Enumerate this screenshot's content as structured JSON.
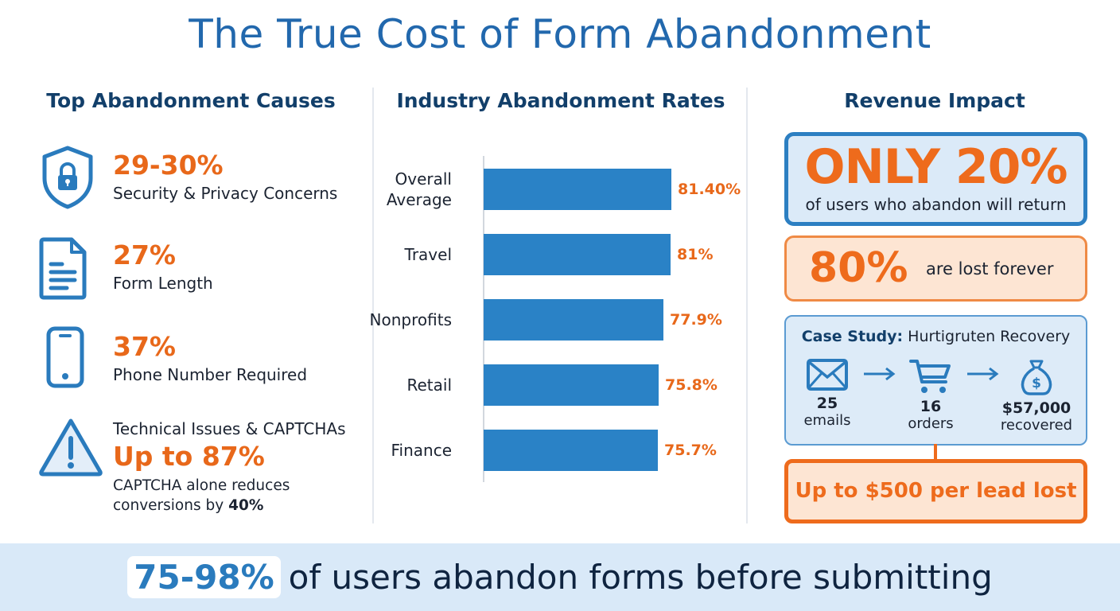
{
  "title": "The True Cost of Form Abandonment",
  "columns": {
    "left": {
      "heading": "Top Abandonment Causes"
    },
    "middle": {
      "heading": "Industry Abandonment Rates"
    },
    "right": {
      "heading": "Revenue Impact"
    }
  },
  "causes": [
    {
      "icon": "shield-lock-icon",
      "value": "29-30%",
      "label": "Security & Privacy Concerns"
    },
    {
      "icon": "document-icon",
      "value": "27%",
      "label": "Form Length"
    },
    {
      "icon": "phone-icon",
      "value": "37%",
      "label": "Phone Number Required"
    },
    {
      "icon": "warning-icon",
      "label": "Technical Issues & CAPTCHAs",
      "value": "Up to 87%",
      "note_prefix": "CAPTCHA alone reduces",
      "note_line2": "conversions by ",
      "note_bold": "40%"
    }
  ],
  "colors": {
    "title_blue": "#2268ad",
    "heading_navy": "#123f6a",
    "bar_blue": "#2a82c6",
    "accent_orange": "#ee6b1c",
    "light_blue_bg": "#dbeaf8",
    "light_orange_bg": "#fde5d3"
  },
  "chart_data": {
    "type": "bar",
    "orientation": "horizontal",
    "title": "Industry Abandonment Rates",
    "categories": [
      "Overall Average",
      "Travel",
      "Nonprofits",
      "Retail",
      "Finance"
    ],
    "values": [
      81.4,
      81.0,
      77.9,
      75.8,
      75.7
    ],
    "value_labels": [
      "81.40%",
      "81%",
      "77.9%",
      "75.8%",
      "75.7%"
    ],
    "xlabel": "",
    "ylabel": "",
    "grid": false,
    "legend": "none"
  },
  "revenue": {
    "return_big": "ONLY 20%",
    "return_sub": "of users who abandon will return",
    "lost_big": "80%",
    "lost_sub": "are lost forever",
    "case_study": {
      "label_bold": "Case Study:",
      "label_rest": " Hurtigruten Recovery",
      "steps": [
        {
          "icon": "envelope-icon",
          "number": "25",
          "unit": "emails"
        },
        {
          "icon": "shopping-cart-icon",
          "number": "16",
          "unit": "orders"
        },
        {
          "icon": "money-bag-icon",
          "number": "$57,000",
          "unit": "recovered"
        }
      ]
    },
    "lead_lost": "Up to $500 per lead lost"
  },
  "footer": {
    "highlight": "75-98%",
    "text": "of users abandon forms before submitting"
  }
}
